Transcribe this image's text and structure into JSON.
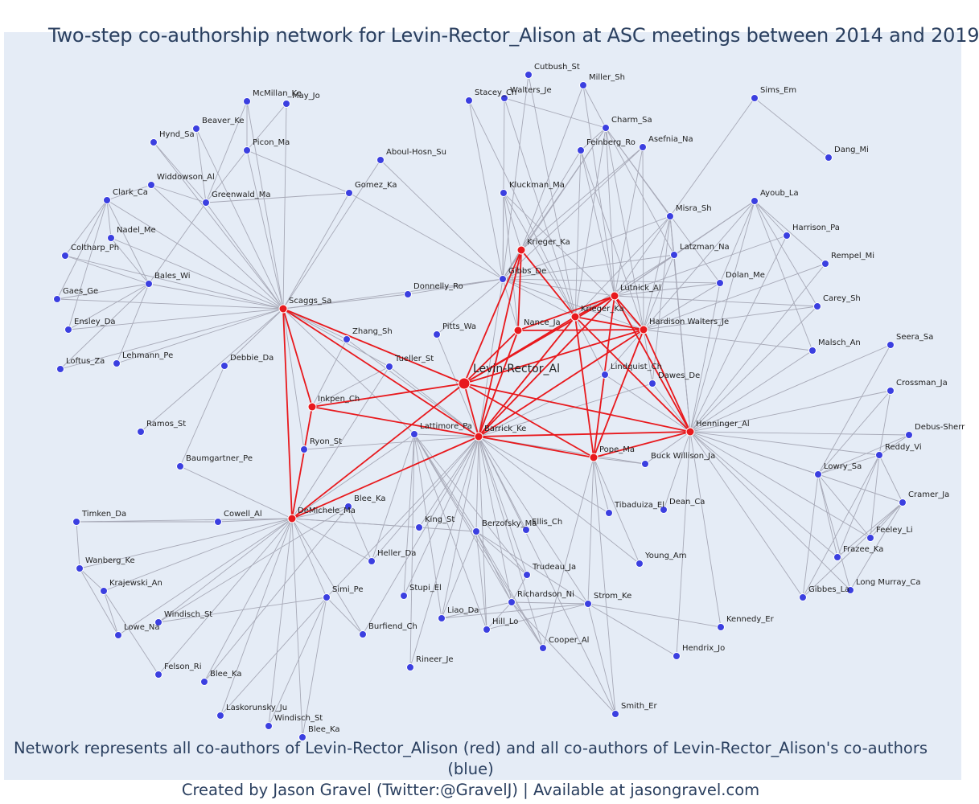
{
  "title": "Two-step co-authorship network for Levin-Rector_Alison at ASC meetings between 2014 and 2019",
  "caption_line1": "Network represents all co-authors of Levin-Rector_Alison (red) and all co-authors of Levin-Rector_Alison's co-authors (blue)",
  "caption_line2": "Created by Jason Gravel (Twitter:@GravelJ) | Available at jasongravel.com",
  "colors": {
    "background": "#e5ecf6",
    "first_degree_node": "#e8191d",
    "second_degree_node": "#3b3fe0",
    "red_edge": "#e8191d",
    "gray_edge": "#a7a9b7",
    "text": "#2a3f5f"
  },
  "center_node": "Levin-Rector_Al",
  "red_nodes": [
    "Levin-Rector_Al",
    "Barrick_Ke",
    "Scaggs_Sa",
    "DeMichele_Ma",
    "Inkpen_Ch",
    "Krieger_Ka",
    "Krieger_Ka ",
    "Nance_Ja",
    "Lutnick_Al",
    "Hardison Walters_Je",
    "Henninger_Al",
    "Pope_Ma"
  ],
  "nodes": [
    {
      "name": "Cutbush_St"
    },
    {
      "name": "Walters_Je"
    },
    {
      "name": "Miller_Sh"
    },
    {
      "name": "Stacey_Ch"
    },
    {
      "name": "Sims_Em"
    },
    {
      "name": "Charm_Sa"
    },
    {
      "name": "Feinberg_Ro"
    },
    {
      "name": "Asefnia_Na"
    },
    {
      "name": "Dang_Mi"
    },
    {
      "name": "McMillan_Ke"
    },
    {
      "name": "May_Jo"
    },
    {
      "name": "Beaver_Ke"
    },
    {
      "name": "Hynd_Sa"
    },
    {
      "name": "Picon_Ma"
    },
    {
      "name": "Aboul-Hosn_Su"
    },
    {
      "name": "Widdowson_Al"
    },
    {
      "name": "Gomez_Ka"
    },
    {
      "name": "Kluckman_Ma"
    },
    {
      "name": "Clark_Ca"
    },
    {
      "name": "Greenwald_Ma"
    },
    {
      "name": "Ayoub_La"
    },
    {
      "name": "Misra_Sh"
    },
    {
      "name": "Nadel_Me"
    },
    {
      "name": "Harrison_Pa"
    },
    {
      "name": "Coltharp_Ph"
    },
    {
      "name": "Latzman_Na"
    },
    {
      "name": "Rempel_Mi"
    },
    {
      "name": "Bales_Wi"
    },
    {
      "name": "Gibbs_De"
    },
    {
      "name": "Dolan_Me"
    },
    {
      "name": "Gaes_Ge"
    },
    {
      "name": "Donnelly_Ro"
    },
    {
      "name": "Carey_Sh"
    },
    {
      "name": "Ensley_Da"
    },
    {
      "name": "Pitts_Wa"
    },
    {
      "name": "Zhang_Sh"
    },
    {
      "name": "Malsch_An"
    },
    {
      "name": "Seera_Sa"
    },
    {
      "name": "Loftus_Za"
    },
    {
      "name": "Lehmann_Pe"
    },
    {
      "name": "Debbie_Da"
    },
    {
      "name": "Tueller_St"
    },
    {
      "name": "Lindquist_Ch"
    },
    {
      "name": "Dawes_De"
    },
    {
      "name": "Crossman_Ja"
    },
    {
      "name": "Ramos_St"
    },
    {
      "name": "Lattimore_Pa"
    },
    {
      "name": "Debus-Sherr"
    },
    {
      "name": "Ryon_St"
    },
    {
      "name": "Reddy_Vi"
    },
    {
      "name": "Baumgartner_Pe"
    },
    {
      "name": "Buck Willison_Ja"
    },
    {
      "name": "Lowry_Sa"
    },
    {
      "name": "Cramer_Ja"
    },
    {
      "name": "Blee_Ka"
    },
    {
      "name": "Tibaduiza_El"
    },
    {
      "name": "Dean_Ca"
    },
    {
      "name": "Timken_Da"
    },
    {
      "name": "Cowell_Al"
    },
    {
      "name": "King_St"
    },
    {
      "name": "Berzofsky_Ma"
    },
    {
      "name": "Ellis_Ch"
    },
    {
      "name": "Feeley_Li"
    },
    {
      "name": "Frazee_Ka"
    },
    {
      "name": "Heller_Da"
    },
    {
      "name": "Young_Am"
    },
    {
      "name": "Wanberg_Ke"
    },
    {
      "name": "Trudeau_Ja"
    },
    {
      "name": "Long Murray_Ca"
    },
    {
      "name": "Gibbes_La"
    },
    {
      "name": "Krajewski_An"
    },
    {
      "name": "Stupi_El"
    },
    {
      "name": "Simi_Pe"
    },
    {
      "name": "Strom_Ke"
    },
    {
      "name": "Richardson_Ni"
    },
    {
      "name": "Windisch_St"
    },
    {
      "name": "Liao_Da"
    },
    {
      "name": "Lowe_Na"
    },
    {
      "name": "Hill_Lo"
    },
    {
      "name": "Kennedy_Er"
    },
    {
      "name": "Burfiend_Ch"
    },
    {
      "name": "Cooper_Al"
    },
    {
      "name": "Hendrix_Jo"
    },
    {
      "name": "Felson_Ri"
    },
    {
      "name": "Rineer_Je"
    },
    {
      "name": "Blee_Ka"
    },
    {
      "name": "Laskorunsky_Ju"
    },
    {
      "name": "Windisch_St"
    },
    {
      "name": "Smith_Er"
    },
    {
      "name": "Blee_Ka"
    }
  ]
}
